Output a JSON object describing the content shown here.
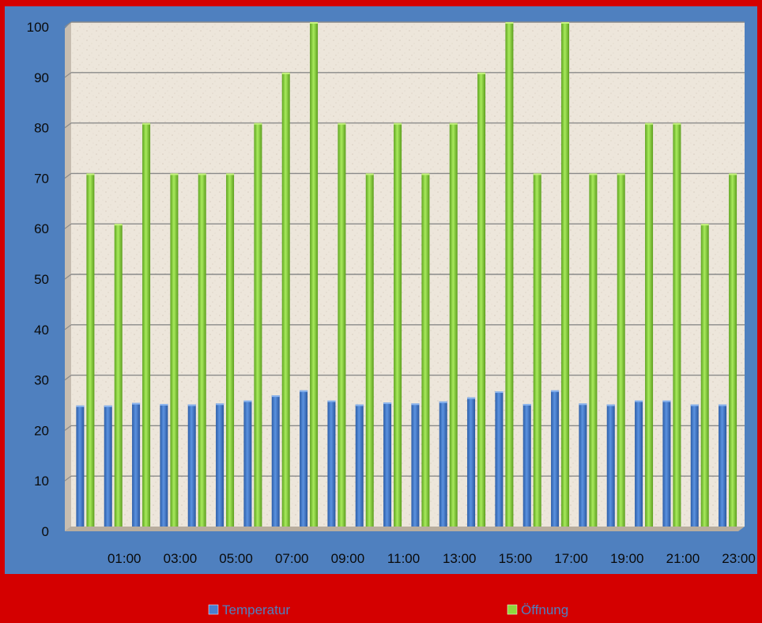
{
  "chart_data": {
    "type": "bar",
    "title": "",
    "xlabel": "",
    "ylabel": "",
    "ylim": [
      0,
      100
    ],
    "yticks": [
      0,
      10,
      20,
      30,
      40,
      50,
      60,
      70,
      80,
      90,
      100
    ],
    "grid": true,
    "legend_position": "bottom",
    "categories": [
      "00:00",
      "01:00",
      "02:00",
      "03:00",
      "04:00",
      "05:00",
      "06:00",
      "07:00",
      "08:00",
      "09:00",
      "10:00",
      "11:00",
      "12:00",
      "13:00",
      "14:00",
      "15:00",
      "16:00",
      "17:00",
      "18:00",
      "19:00",
      "20:00",
      "21:00",
      "22:00",
      "23:00"
    ],
    "tick_labels": [
      "01:00",
      "03:00",
      "05:00",
      "07:00",
      "09:00",
      "11:00",
      "13:00",
      "15:00",
      "17:00",
      "19:00",
      "21:00",
      "23:00"
    ],
    "series": [
      {
        "name": "Temperatur",
        "color": "#4a7fd0",
        "values": [
          24,
          24,
          24.5,
          24.3,
          24.2,
          24.4,
          25,
          26,
          27,
          25,
          24.2,
          24.6,
          24.4,
          24.8,
          25.6,
          26.8,
          24.3,
          27,
          24.4,
          24.2,
          25,
          25,
          24.2,
          24.2
        ]
      },
      {
        "name": "Öffnung",
        "color": "#8fd63c",
        "values": [
          70,
          60,
          80,
          70,
          70,
          70,
          80,
          90,
          100,
          80,
          70,
          80,
          70,
          80,
          90,
          100,
          70,
          100,
          70,
          70,
          80,
          80,
          60,
          70
        ]
      }
    ]
  }
}
